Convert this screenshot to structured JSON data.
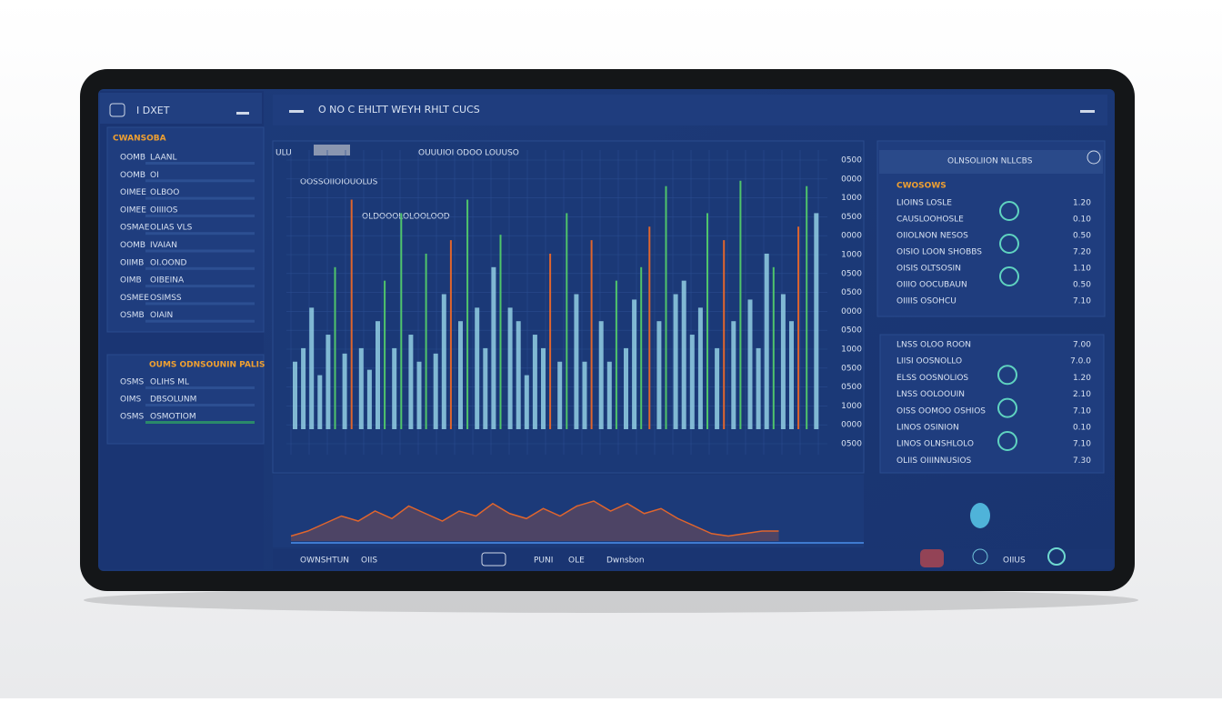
{
  "header": {
    "app_title": "I DXET",
    "main_title": "O NO C EHLTT WEYH RHLT CUCS"
  },
  "sidebar": {
    "panel1": {
      "heading": "CWANSOBA",
      "rows": [
        [
          "OOMB",
          "LAANL"
        ],
        [
          "OOMB",
          "OI"
        ],
        [
          "OIMEE",
          "OLBOO"
        ],
        [
          "OIMEE",
          "OIIIIOS"
        ],
        [
          "OSMAE",
          "OLIAS VLS"
        ],
        [
          "OOMB",
          "IVAIAN"
        ],
        [
          "OIIMB",
          "OI.OOND"
        ],
        [
          "OIMB",
          "OIBEINA"
        ],
        [
          "OSMEE",
          "OSIMSS"
        ],
        [
          "OSMB",
          "OIAIN"
        ]
      ]
    },
    "panel2": {
      "heading": "OUMS ODNSOUNIN PALIS",
      "rows": [
        [
          "OSMS",
          "OLIHS ML"
        ],
        [
          "OIMS",
          "DBSOLUNM"
        ],
        [
          "OSMS",
          "OSMOTIOM"
        ]
      ]
    }
  },
  "chart": {
    "captions": [
      "ULU",
      "OUUUIOI ODOO LOUUSO",
      "OOSSOIIOIOUOLUS",
      "OLDOOOLOLOOLOOD"
    ],
    "y_labels": [
      "0500",
      "0000",
      "1000",
      "0500",
      "0000",
      "1000",
      "0500",
      "0500",
      "0000",
      "0500",
      "1000",
      "0500",
      "0500",
      "1000",
      "0000",
      "0500"
    ],
    "ylim": [
      0,
      100
    ],
    "bars": {
      "values": [
        25,
        30,
        45,
        20,
        35,
        60,
        28,
        85,
        30,
        22,
        40,
        55,
        30,
        80,
        35,
        25,
        65,
        28,
        50,
        70,
        40,
        85,
        45,
        30,
        60,
        72,
        45,
        40,
        20,
        35,
        30,
        65,
        25,
        80,
        50,
        25,
        70,
        40,
        25,
        55,
        30,
        48,
        60,
        75,
        40,
        90,
        50,
        55,
        35,
        45,
        80,
        30,
        70,
        40,
        92,
        48,
        30,
        65,
        60,
        50,
        40,
        75,
        90,
        80
      ],
      "colors": [
        "#9ad8ea",
        "#9ad8ea",
        "#9ad8ea",
        "#9ad8ea",
        "#9ad8ea",
        "#4fc46b",
        "#9ad8ea",
        "#e0652d",
        "#9ad8ea",
        "#9ad8ea",
        "#9ad8ea",
        "#4fc46b",
        "#9ad8ea",
        "#4fc46b",
        "#9ad8ea",
        "#9ad8ea",
        "#4fc46b",
        "#9ad8ea",
        "#9ad8ea",
        "#e0652d",
        "#9ad8ea",
        "#4fc46b",
        "#9ad8ea",
        "#9ad8ea",
        "#9ad8ea",
        "#4fc46b",
        "#9ad8ea",
        "#9ad8ea",
        "#9ad8ea",
        "#9ad8ea",
        "#9ad8ea",
        "#e0652d",
        "#9ad8ea",
        "#4fc46b",
        "#9ad8ea",
        "#9ad8ea",
        "#e0652d",
        "#9ad8ea",
        "#9ad8ea",
        "#4fc46b",
        "#9ad8ea",
        "#9ad8ea",
        "#4fc46b",
        "#e0652d",
        "#9ad8ea",
        "#4fc46b",
        "#9ad8ea",
        "#9ad8ea",
        "#9ad8ea",
        "#9ad8ea",
        "#4fc46b",
        "#9ad8ea",
        "#e0652d",
        "#9ad8ea",
        "#4fc46b",
        "#9ad8ea",
        "#9ad8ea",
        "#9ad8ea",
        "#4fc46b",
        "#9ad8ea",
        "#9ad8ea",
        "#e0652d",
        "#4fc46b",
        "#9ad8ea"
      ]
    },
    "trend": {
      "color": "#e0652d",
      "ylim": [
        0,
        100
      ],
      "values": [
        10,
        20,
        35,
        50,
        40,
        60,
        45,
        70,
        55,
        40,
        60,
        50,
        75,
        55,
        45,
        65,
        50,
        70,
        80,
        60,
        75,
        55,
        65,
        45,
        30,
        15,
        10,
        15,
        20,
        20
      ]
    }
  },
  "right_panel1": {
    "top": "OLNSOLIION NLLCBS",
    "heading": "CWOSOWS",
    "rows": [
      [
        "LIOINS LOSLE",
        "1.20"
      ],
      [
        "CAUSLOOHOSLE",
        "0.10"
      ],
      [
        "OIIOLNON NESOS",
        "0.50"
      ],
      [
        "OISIO LOON SHOBBS",
        "7.20"
      ],
      [
        "OISIS OLTSOSIN",
        "1.10"
      ],
      [
        "OIIIO OOCUBAUN",
        "0.50"
      ],
      [
        "OIIIIS OSOHCU",
        "7.10"
      ]
    ]
  },
  "right_panel2": {
    "rows": [
      [
        "LNSS OLOO ROON",
        "7.00"
      ],
      [
        "LIISI OOSNOLLO",
        "7.0.0"
      ],
      [
        "ELSS OOSNOLIOS",
        "1.20"
      ],
      [
        "LNSS OOLOOUIN",
        "2.10"
      ],
      [
        "OISS OOMOO OSHIOS",
        "7.10"
      ],
      [
        "LINOS OSINION",
        "0.10"
      ],
      [
        "LINOS OLNSHLOLO",
        "7.10"
      ],
      [
        "OLIIS OIIINNUSIOS",
        "7.30"
      ]
    ]
  },
  "footer": {
    "labels": [
      "OWNSHTUN",
      "OIIS",
      "PUNI",
      "OLE",
      "Dwnsbon"
    ],
    "right_label": "OIIUS"
  }
}
